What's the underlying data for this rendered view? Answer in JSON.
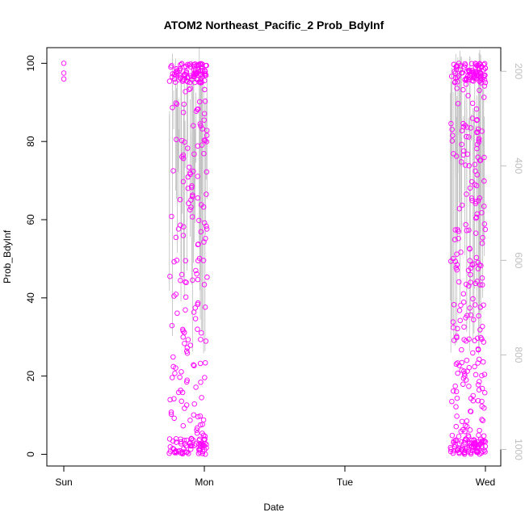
{
  "chart_data": {
    "type": "scatter",
    "title": "ATOM2 Northeast_Pacific_2 Prob_BdyInf",
    "xlabel": "Date",
    "ylabel": "Prob_BdyInf",
    "x_ticks": [
      "Sun",
      "Mon",
      "Tue",
      "Wed"
    ],
    "x_range_days": [
      -0.1,
      3.1
    ],
    "ylim": [
      -3,
      104
    ],
    "y_ticks": [
      0,
      20,
      40,
      60,
      80,
      100
    ],
    "y2_ticks": [
      200,
      400,
      600,
      800,
      1000
    ],
    "y2_range": [
      150,
      1035
    ],
    "colors": {
      "points": "#ff00ff",
      "lines": "#bebebe",
      "axis": "#000000",
      "axis2": "#bebebe"
    },
    "clusters": [
      {
        "day_start": 0.0,
        "day_end": 0.01,
        "count": 3,
        "min": 96,
        "max": 100
      },
      {
        "day_start": 0.75,
        "day_end": 1.02,
        "count": 320,
        "min": 0,
        "max": 100
      },
      {
        "day_start": 2.75,
        "day_end": 3.0,
        "count": 380,
        "min": 0,
        "max": 100
      }
    ],
    "points_day0": [
      [
        0.0,
        100
      ],
      [
        0.0,
        97.5
      ],
      [
        0.0,
        96
      ]
    ]
  }
}
